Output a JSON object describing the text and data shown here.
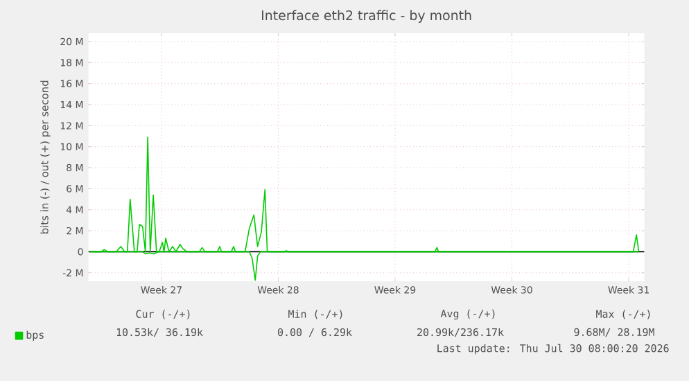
{
  "chart_data": {
    "type": "line",
    "title": "Interface eth2 traffic - by month",
    "ylabel": "bits in (-) / out (+) per second",
    "series": [
      {
        "name": "bps",
        "color": "#00cc00",
        "x": [
          "2026-06-28T05:00",
          "2026-06-28T21:00",
          "2026-06-29T01:40",
          "2026-06-29T07:00",
          "2026-06-29T19:00",
          "2026-06-30T01:35",
          "2026-06-30T07:00",
          "2026-06-30T11:00",
          "2026-06-30T15:00",
          "2026-06-30T21:00",
          "2026-07-01T01:00",
          "2026-07-01T04:20",
          "2026-07-01T08:50",
          "2026-07-01T12:50",
          "2026-07-01T16:15",
          "2026-07-01T19:50",
          "2026-07-02T00:15",
          "2026-07-02T04:50",
          "2026-07-02T08:50",
          "2026-07-02T13:20",
          "2026-07-02T15:45",
          "2026-07-02T18:10",
          "2026-07-02T22:45",
          "2026-07-03T04:10",
          "2026-07-03T08:45",
          "2026-07-03T14:45",
          "2026-07-03T18:40",
          "2026-07-04T00:40",
          "2026-07-04T18:30",
          "2026-07-04T22:30",
          "2026-07-05T02:30",
          "2026-07-05T20:30",
          "2026-07-05T23:50",
          "2026-07-06T02:25",
          "2026-07-06T16:25",
          "2026-07-06T19:45",
          "2026-07-06T22:20",
          "2026-07-07T12:20",
          "2026-07-07T18:15",
          "2026-07-08T00:55",
          "2026-07-08T06:15",
          "2026-07-08T11:40",
          "2026-07-08T16:50",
          "2026-07-08T20:10",
          "2026-07-09T20:10",
          "2026-07-09T23:30",
          "2026-07-10T02:05",
          "2026-07-18T21:30",
          "2026-07-19T00:05",
          "2026-07-19T02:30",
          "2026-07-30T18:30",
          "2026-07-30T23:05",
          "2026-07-31T02:30"
        ],
        "values": [
          0,
          0,
          0.2,
          0,
          0,
          0.5,
          0,
          0,
          5.0,
          0,
          0,
          2.6,
          2.4,
          0,
          10.9,
          0,
          5.4,
          0,
          0,
          0.9,
          0,
          1.3,
          0,
          0.5,
          0,
          0.7,
          0.3,
          0,
          0,
          0.4,
          0,
          0,
          0.5,
          0,
          0,
          0.5,
          0,
          0,
          2.2,
          3.5,
          0.5,
          1.9,
          5.9,
          0,
          0,
          0.1,
          0,
          0,
          0.4,
          0,
          0,
          1.6,
          0
        ]
      },
      {
        "color": "#00cc00",
        "x": [
          "2026-06-28T05:00",
          "2026-07-01T08:50",
          "2026-07-01T12:50",
          "2026-07-01T18:50",
          "2026-07-02T00:50",
          "2026-07-02T06:50",
          "2026-07-07T18:15",
          "2026-07-07T22:20",
          "2026-07-08T02:55",
          "2026-07-08T06:15",
          "2026-07-08T10:15",
          "2026-07-31T02:30"
        ],
        "values": [
          0,
          0,
          -0.2,
          -0.1,
          -0.2,
          0,
          0,
          -0.6,
          -2.7,
          -0.4,
          0,
          0
        ]
      }
    ],
    "xlim": [
      "2026-06-28T03:00",
      "2026-07-31T10:30"
    ],
    "xticks": [
      {
        "value": "2026-07-02T12:00",
        "label": "Week 27"
      },
      {
        "value": "2026-07-09T12:00",
        "label": "Week 28"
      },
      {
        "value": "2026-07-16T12:00",
        "label": "Week 29"
      },
      {
        "value": "2026-07-23T12:00",
        "label": "Week 30"
      },
      {
        "value": "2026-07-30T12:00",
        "label": "Week 31"
      }
    ],
    "ylim": [
      -2.8,
      20.8
    ],
    "yticks": [
      {
        "value": -2,
        "label": "-2 M"
      },
      0,
      {
        "value": 2,
        "label": "2 M"
      },
      {
        "value": 4,
        "label": "4 M"
      },
      {
        "value": 6,
        "label": "6 M"
      },
      {
        "value": 8,
        "label": "8 M"
      },
      {
        "value": 10,
        "label": "10 M"
      },
      {
        "value": 12,
        "label": "12 M"
      },
      {
        "value": 14,
        "label": "14 M"
      },
      {
        "value": 16,
        "label": "16 M"
      },
      {
        "value": 18,
        "label": "18 M"
      },
      {
        "value": 20,
        "label": "20 M"
      }
    ],
    "ref_lines": [
      {
        "axis": "y",
        "value": 0,
        "color": "#000000"
      }
    ],
    "grid": true,
    "legend": "bottom left",
    "annotations": [
      "Cur (-/+)",
      "Min (-/+)",
      "Avg (-/+)",
      "Max (-/+)",
      "10.53k/ 36.19k",
      "0.00 /  6.29k",
      "20.99k/236.17k",
      "9.68M/ 28.19M",
      "Last update: Thu Jul 30 08:00:20 2026"
    ]
  }
}
